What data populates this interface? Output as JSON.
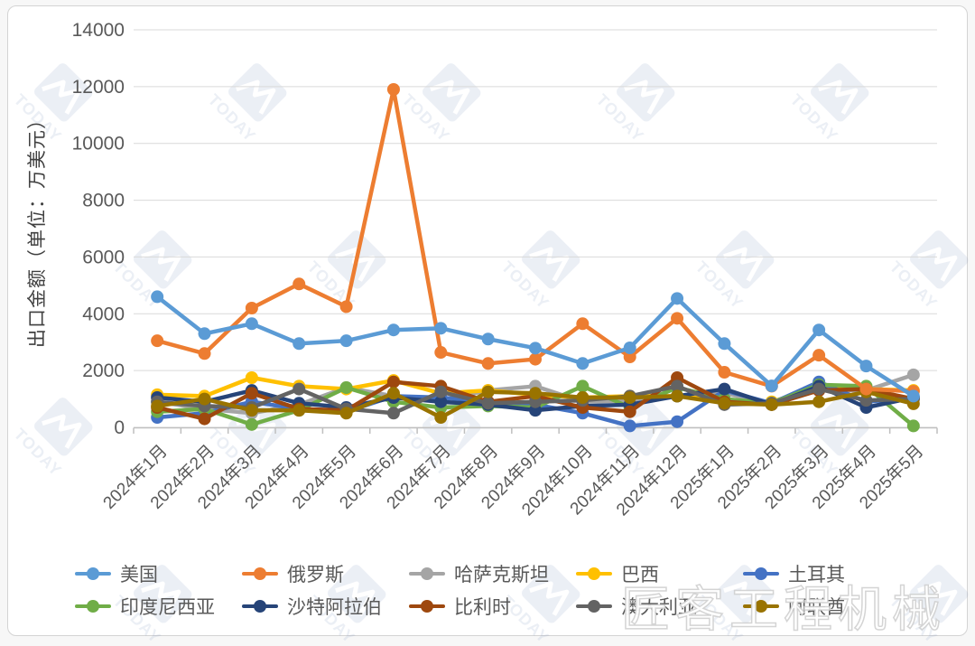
{
  "watermark": {
    "logo_text": "TODAY",
    "brand_text": "匠客工程机械"
  },
  "chart_data": {
    "type": "line",
    "title": "",
    "xlabel": "",
    "ylabel": "出口金额（单位：万美元）",
    "ylim": [
      0,
      14000
    ],
    "y_ticks": [
      0,
      2000,
      4000,
      6000,
      8000,
      10000,
      12000,
      14000
    ],
    "grid": "horizontal",
    "legend_position": "bottom",
    "marker": "circle",
    "categories": [
      "2024年1月",
      "2024年2月",
      "2024年3月",
      "2024年4月",
      "2024年5月",
      "2024年6月",
      "2024年7月",
      "2024年8月",
      "2024年9月",
      "2024年10月",
      "2024年11月",
      "2024年12月",
      "2025年1月",
      "2025年2月",
      "2025年3月",
      "2025年4月",
      "2025年5月"
    ],
    "series": [
      {
        "name": "美国",
        "color": "#5B9BD5",
        "values": [
          4600,
          3300,
          3650,
          2950,
          3050,
          3430,
          3490,
          3110,
          2790,
          2250,
          2800,
          4540,
          2950,
          1460,
          3430,
          2160,
          1100
        ]
      },
      {
        "name": "俄罗斯",
        "color": "#ED7D31",
        "values": [
          3050,
          2600,
          4200,
          5050,
          4250,
          11900,
          2640,
          2250,
          2400,
          3650,
          2480,
          3840,
          1940,
          1450,
          2540,
          1350,
          1270
        ]
      },
      {
        "name": "哈萨克斯坦",
        "color": "#A5A5A5",
        "values": [
          900,
          650,
          500,
          800,
          1400,
          1100,
          950,
          1300,
          1450,
          900,
          950,
          1100,
          1200,
          850,
          1300,
          1300,
          1850
        ]
      },
      {
        "name": "巴西",
        "color": "#FFC000",
        "values": [
          1150,
          1100,
          1750,
          1450,
          1350,
          1650,
          1200,
          1300,
          1150,
          1050,
          1100,
          1100,
          950,
          900,
          1400,
          1350,
          1300
        ]
      },
      {
        "name": "土耳其",
        "color": "#4472C4",
        "values": [
          350,
          500,
          900,
          650,
          550,
          1100,
          1050,
          900,
          800,
          500,
          50,
          200,
          1300,
          850,
          1600,
          900,
          1050
        ]
      },
      {
        "name": "印度尼西亚",
        "color": "#70AD47",
        "values": [
          550,
          650,
          100,
          600,
          1400,
          900,
          700,
          750,
          700,
          1450,
          700,
          1400,
          1000,
          850,
          1500,
          1450,
          50
        ]
      },
      {
        "name": "沙特阿拉伯",
        "color": "#264478",
        "values": [
          1050,
          900,
          1300,
          850,
          700,
          1050,
          900,
          800,
          600,
          750,
          800,
          1100,
          1350,
          800,
          1450,
          700,
          1050
        ]
      },
      {
        "name": "比利时",
        "color": "#9E480E",
        "values": [
          700,
          300,
          1200,
          650,
          600,
          1600,
          1450,
          900,
          1100,
          700,
          550,
          1750,
          900,
          800,
          1300,
          1350,
          1000
        ]
      },
      {
        "name": "澳大利亚",
        "color": "#636363",
        "values": [
          900,
          750,
          700,
          1350,
          650,
          500,
          1250,
          850,
          900,
          950,
          1100,
          1450,
          800,
          850,
          1350,
          950,
          1000
        ]
      },
      {
        "name": "阿联酋",
        "color": "#997300",
        "values": [
          750,
          1000,
          600,
          600,
          500,
          1200,
          350,
          1250,
          1200,
          1050,
          1050,
          1100,
          850,
          800,
          900,
          1250,
          830
        ]
      }
    ]
  }
}
